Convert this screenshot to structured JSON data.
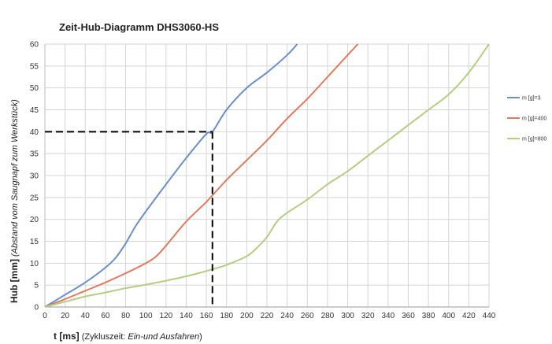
{
  "chart_data": {
    "type": "line",
    "title": "Zeit-Hub-Diagramm DHS3060-HS",
    "xlabel": {
      "main": "t [ms]",
      "paren_open": " (Zykluszeit: ",
      "paren_italic": "Ein-und Ausfahren",
      "paren_close": ")"
    },
    "ylabel": {
      "main": "Hub [mm]",
      "paren": " (Abstand vom Saugnapf zum Werkstück)"
    },
    "xlim": [
      0,
      440
    ],
    "ylim": [
      0,
      60
    ],
    "xticks": [
      0,
      20,
      40,
      60,
      80,
      100,
      120,
      140,
      160,
      180,
      200,
      220,
      240,
      260,
      280,
      300,
      320,
      340,
      360,
      380,
      400,
      420,
      440
    ],
    "yticks": [
      0,
      5,
      10,
      15,
      20,
      25,
      30,
      35,
      40,
      45,
      50,
      55,
      60
    ],
    "grid": true,
    "legend_position": "right",
    "series": [
      {
        "name": "m [g]=3",
        "color": "#6b8fc7",
        "points": [
          [
            0,
            0
          ],
          [
            20,
            2.8
          ],
          [
            40,
            5.6
          ],
          [
            60,
            9
          ],
          [
            70,
            11.2
          ],
          [
            80,
            14.5
          ],
          [
            90,
            18.5
          ],
          [
            100,
            21.8
          ],
          [
            120,
            28
          ],
          [
            140,
            34
          ],
          [
            160,
            39.5
          ],
          [
            166,
            40
          ],
          [
            180,
            45
          ],
          [
            200,
            50
          ],
          [
            220,
            53.5
          ],
          [
            240,
            57.5
          ],
          [
            250,
            60
          ]
        ]
      },
      {
        "name": "m [g]=400",
        "color": "#e07a5f",
        "points": [
          [
            0,
            0
          ],
          [
            20,
            1.8
          ],
          [
            40,
            3.7
          ],
          [
            60,
            5.6
          ],
          [
            80,
            7.7
          ],
          [
            100,
            10
          ],
          [
            110,
            11.5
          ],
          [
            120,
            14
          ],
          [
            140,
            19.5
          ],
          [
            160,
            24
          ],
          [
            180,
            29
          ],
          [
            200,
            33.5
          ],
          [
            220,
            38
          ],
          [
            240,
            43
          ],
          [
            260,
            47.5
          ],
          [
            280,
            52.5
          ],
          [
            300,
            57.5
          ],
          [
            310,
            60
          ]
        ]
      },
      {
        "name": "m [g]=800",
        "color": "#b5cc84",
        "points": [
          [
            0,
            0
          ],
          [
            20,
            1.2
          ],
          [
            40,
            2.4
          ],
          [
            60,
            3.3
          ],
          [
            80,
            4.3
          ],
          [
            100,
            5.1
          ],
          [
            120,
            6
          ],
          [
            140,
            7
          ],
          [
            160,
            8.2
          ],
          [
            180,
            9.6
          ],
          [
            200,
            11.6
          ],
          [
            210,
            13.5
          ],
          [
            220,
            16
          ],
          [
            230,
            19.5
          ],
          [
            240,
            21.5
          ],
          [
            260,
            24.5
          ],
          [
            280,
            28
          ],
          [
            300,
            31
          ],
          [
            320,
            34.5
          ],
          [
            340,
            38
          ],
          [
            360,
            41.5
          ],
          [
            380,
            45
          ],
          [
            400,
            48.5
          ],
          [
            420,
            53.5
          ],
          [
            440,
            60
          ]
        ]
      }
    ],
    "annotation": {
      "style": "dashed",
      "color": "#000000",
      "x": 166,
      "y": 40
    }
  }
}
